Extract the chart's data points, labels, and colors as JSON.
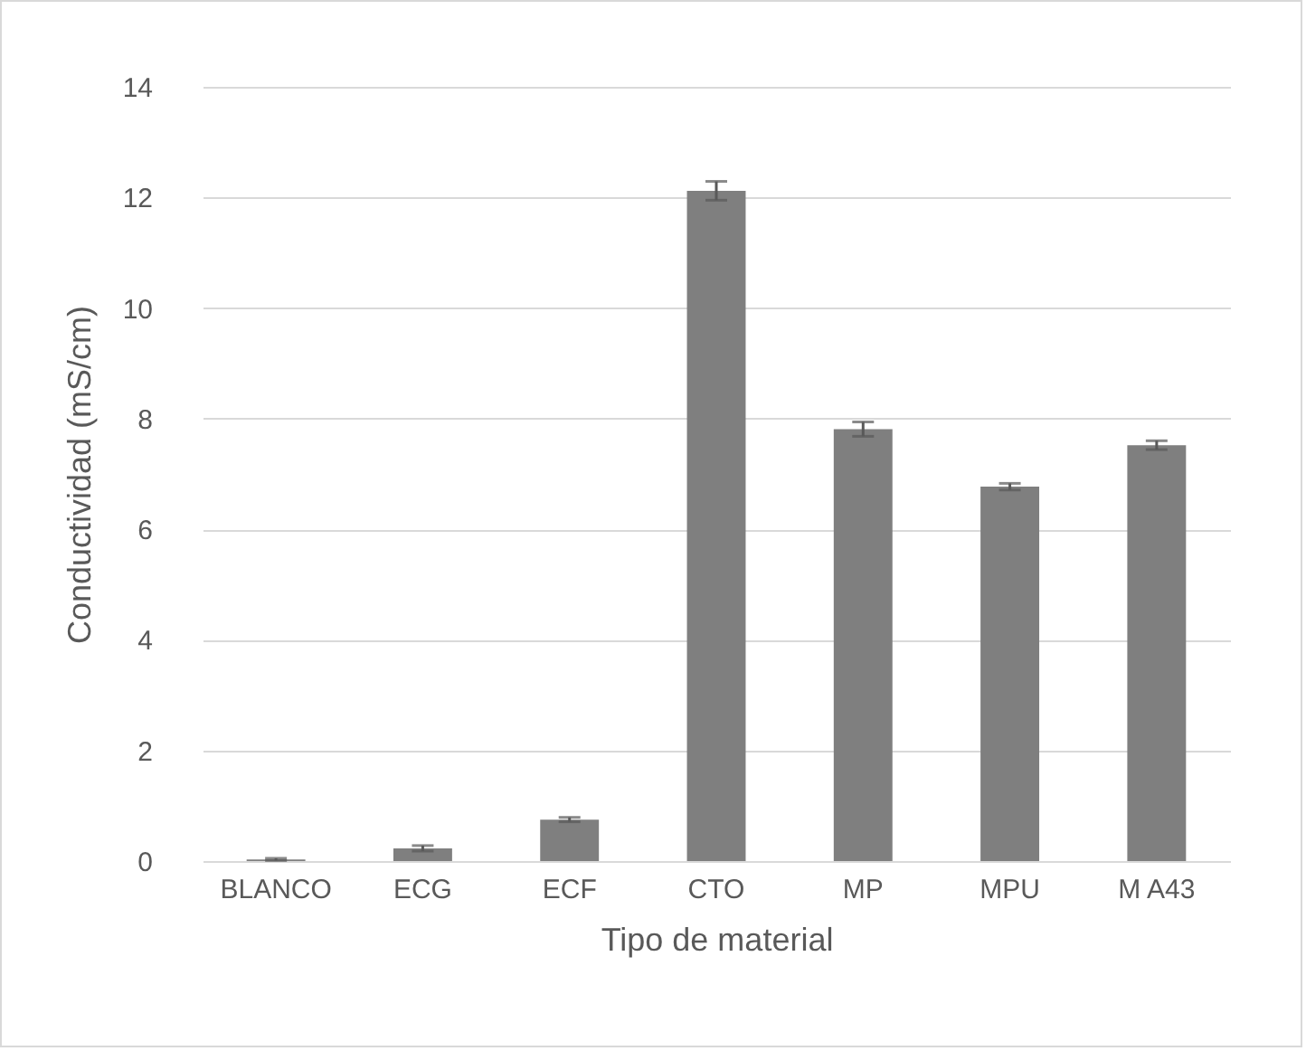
{
  "chart_data": {
    "type": "bar",
    "xlabel": "Tipo de material",
    "ylabel": "Conductividad (mS/cm)",
    "categories": [
      "BLANCO",
      "ECG",
      "ECF",
      "CTO",
      "MP",
      "MPU",
      "M A43"
    ],
    "values": [
      0.03,
      0.23,
      0.75,
      12.12,
      7.81,
      6.77,
      7.52
    ],
    "errors": [
      0.02,
      0.05,
      0.04,
      0.17,
      0.13,
      0.06,
      0.08
    ],
    "color": "#7f7f7f",
    "ylim": [
      0,
      14
    ],
    "yticks": [
      0,
      2,
      4,
      6,
      8,
      10,
      12,
      14
    ],
    "grid": "y"
  }
}
